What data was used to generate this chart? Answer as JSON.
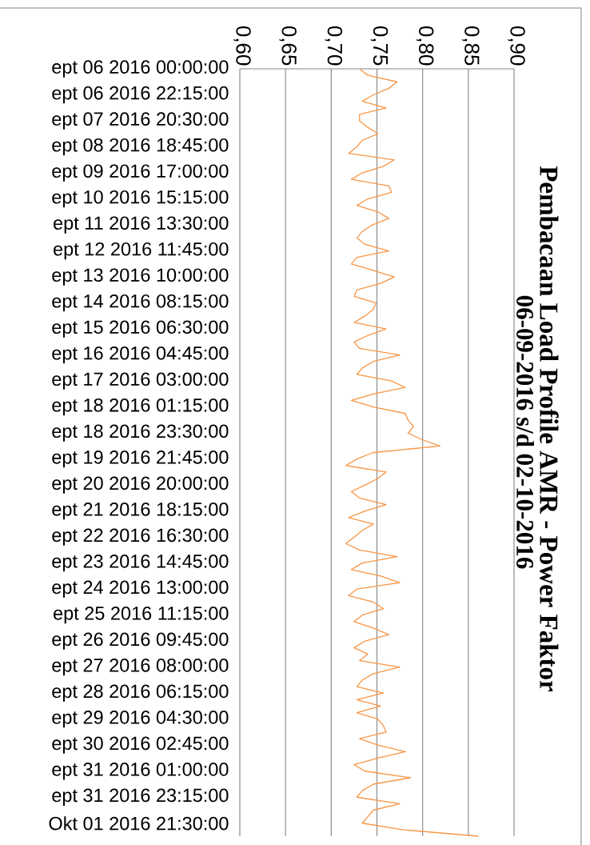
{
  "chart_data": {
    "type": "line",
    "title": "Pembacaan Load Profile AMR - Power Faktor",
    "subtitle": "06-09-2016 s/d 02-10-2016",
    "categories": [
      "ept 06 2016 00:00:00",
      null,
      null,
      null,
      "ept 06 2016 22:15:00",
      null,
      null,
      null,
      "ept 07 2016 20:30:00",
      null,
      null,
      null,
      "ept 08 2016 18:45:00",
      null,
      null,
      null,
      "ept 09 2016 17:00:00",
      null,
      null,
      null,
      "ept 10 2016 15:15:00",
      null,
      null,
      null,
      "ept 11 2016 13:30:00",
      null,
      null,
      null,
      "ept 12 2016 11:45:00",
      null,
      null,
      null,
      "ept 13 2016 10:00:00",
      null,
      null,
      null,
      "ept 14 2016 08:15:00",
      null,
      null,
      null,
      "ept 15 2016 06:30:00",
      null,
      null,
      null,
      "ept 16 2016 04:45:00",
      null,
      null,
      null,
      "ept 17 2016 03:00:00",
      null,
      null,
      null,
      "ept 18 2016 01:15:00",
      null,
      null,
      null,
      "ept 18 2016 23:30:00",
      null,
      null,
      null,
      "ept 19 2016 21:45:00",
      null,
      null,
      null,
      "ept 20 2016 20:00:00",
      null,
      null,
      null,
      "ept 21 2016 18:15:00",
      null,
      null,
      null,
      "ept 22 2016 16:30:00",
      null,
      null,
      null,
      "ept 23 2016 14:45:00",
      null,
      null,
      null,
      "ept 24 2016 13:00:00",
      null,
      null,
      null,
      "ept 25 2016 11:15:00",
      null,
      null,
      null,
      "ept 26 2016 09:45:00",
      null,
      null,
      null,
      "ept 27 2016 08:00:00",
      null,
      null,
      null,
      "ept 28 2016 06:15:00",
      null,
      null,
      null,
      "ept 29 2016 04:30:00",
      null,
      null,
      null,
      "ept 30 2016 02:45:00",
      null,
      null,
      null,
      "ept 31 2016 01:00:00",
      null,
      null,
      null,
      "ept 31 2016 23:15:00",
      null,
      null,
      null,
      "Okt 01 2016 21:30:00",
      null,
      null
    ],
    "series": [
      {
        "color": "#f79646",
        "values": [
          0.731,
          0.74,
          0.772,
          0.763,
          0.746,
          0.734,
          0.76,
          0.731,
          0.731,
          0.74,
          0.751,
          0.734,
          0.728,
          0.719,
          0.769,
          0.757,
          0.734,
          0.722,
          0.763,
          0.766,
          0.74,
          0.728,
          0.751,
          0.763,
          0.745,
          0.734,
          0.728,
          0.737,
          0.763,
          0.728,
          0.722,
          0.746,
          0.769,
          0.754,
          0.728,
          0.725,
          0.749,
          0.746,
          0.737,
          0.725,
          0.76,
          0.74,
          0.725,
          0.731,
          0.775,
          0.746,
          0.734,
          0.728,
          0.766,
          0.781,
          0.746,
          0.722,
          0.746,
          0.781,
          0.784,
          0.79,
          0.784,
          0.799,
          0.819,
          0.746,
          0.728,
          0.716,
          0.76,
          0.751,
          0.737,
          0.722,
          0.731,
          0.76,
          0.737,
          0.719,
          0.746,
          0.734,
          0.725,
          0.716,
          0.731,
          0.772,
          0.734,
          0.722,
          0.754,
          0.775,
          0.728,
          0.719,
          0.746,
          0.757,
          0.734,
          0.725,
          0.746,
          0.763,
          0.737,
          0.725,
          0.74,
          0.731,
          0.775,
          0.746,
          0.734,
          0.728,
          0.757,
          0.728,
          0.754,
          0.728,
          0.751,
          0.757,
          0.76,
          0.731,
          0.751,
          0.781,
          0.751,
          0.725,
          0.737,
          0.787,
          0.746,
          0.734,
          0.728,
          0.775,
          0.746,
          0.74,
          0.734,
          0.778,
          0.861
        ]
      }
    ],
    "orientation": "horizontal",
    "xlim": [
      0.6,
      0.9
    ],
    "xticks": [
      {
        "value": 0.6,
        "label": "0,60"
      },
      {
        "value": 0.65,
        "label": "0,65"
      },
      {
        "value": 0.7,
        "label": "0,70"
      },
      {
        "value": 0.75,
        "label": "0,75"
      },
      {
        "value": 0.8,
        "label": "0,80"
      },
      {
        "value": 0.85,
        "label": "0,85"
      },
      {
        "value": 0.9,
        "label": "0,90"
      }
    ],
    "grid": "x",
    "line_style": "solid"
  }
}
